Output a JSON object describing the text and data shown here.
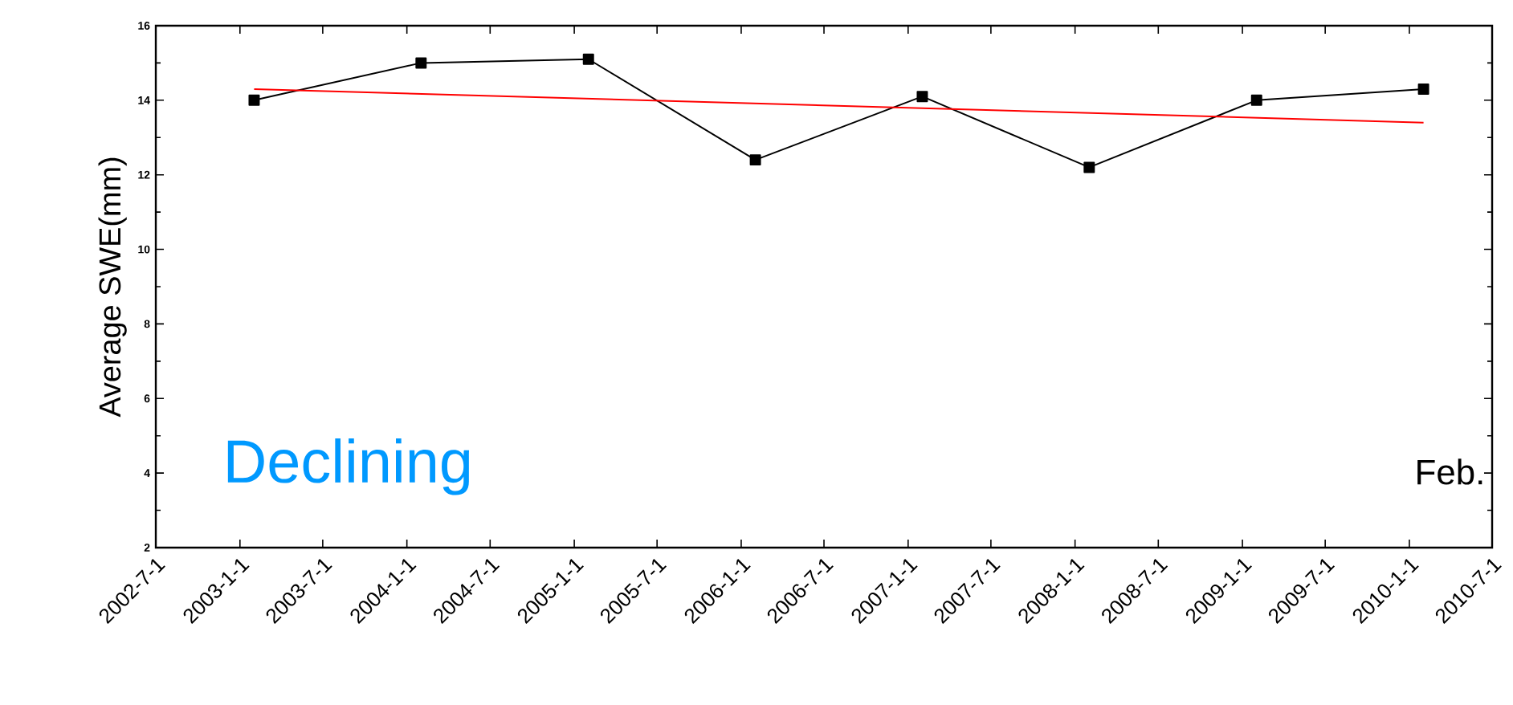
{
  "chart_data": {
    "type": "line",
    "ylabel": "Average SWE(mm)",
    "xlim": [
      "2002-07-01",
      "2010-07-01"
    ],
    "xticks": [
      {
        "value": "2002-07-01",
        "label": "2002-7-1"
      },
      {
        "value": "2003-01-01",
        "label": "2003-1-1"
      },
      {
        "value": "2003-07-01",
        "label": "2003-7-1"
      },
      {
        "value": "2004-01-01",
        "label": "2004-1-1"
      },
      {
        "value": "2004-07-01",
        "label": "2004-7-1"
      },
      {
        "value": "2005-01-01",
        "label": "2005-1-1"
      },
      {
        "value": "2005-07-01",
        "label": "2005-7-1"
      },
      {
        "value": "2006-01-01",
        "label": "2006-1-1"
      },
      {
        "value": "2006-07-01",
        "label": "2006-7-1"
      },
      {
        "value": "2007-01-01",
        "label": "2007-1-1"
      },
      {
        "value": "2007-07-01",
        "label": "2007-7-1"
      },
      {
        "value": "2008-01-01",
        "label": "2008-1-1"
      },
      {
        "value": "2008-07-01",
        "label": "2008-7-1"
      },
      {
        "value": "2009-01-01",
        "label": "2009-1-1"
      },
      {
        "value": "2009-07-01",
        "label": "2009-7-1"
      },
      {
        "value": "2010-01-01",
        "label": "2010-1-1"
      },
      {
        "value": "2010-07-01",
        "label": "2010-7-1"
      }
    ],
    "ylim": [
      2,
      16
    ],
    "yticks": [
      2,
      4,
      6,
      8,
      10,
      12,
      14,
      16
    ],
    "series": [
      {
        "color": "#000000",
        "marker": "square",
        "line_style": "solid",
        "x": [
          "2003-02-01",
          "2004-02-01",
          "2005-02-01",
          "2006-02-01",
          "2007-02-01",
          "2008-02-01",
          "2009-02-01",
          "2010-02-01"
        ],
        "values": [
          14.0,
          15.0,
          15.1,
          12.4,
          14.1,
          12.2,
          14.0,
          14.3
        ]
      },
      {
        "color": "#ff0000",
        "marker": "none",
        "line_style": "solid",
        "x": [
          "2003-02-01",
          "2010-02-01"
        ],
        "values": [
          14.3,
          13.4
        ]
      }
    ],
    "annotations": [
      "Declining",
      "Feb."
    ]
  }
}
